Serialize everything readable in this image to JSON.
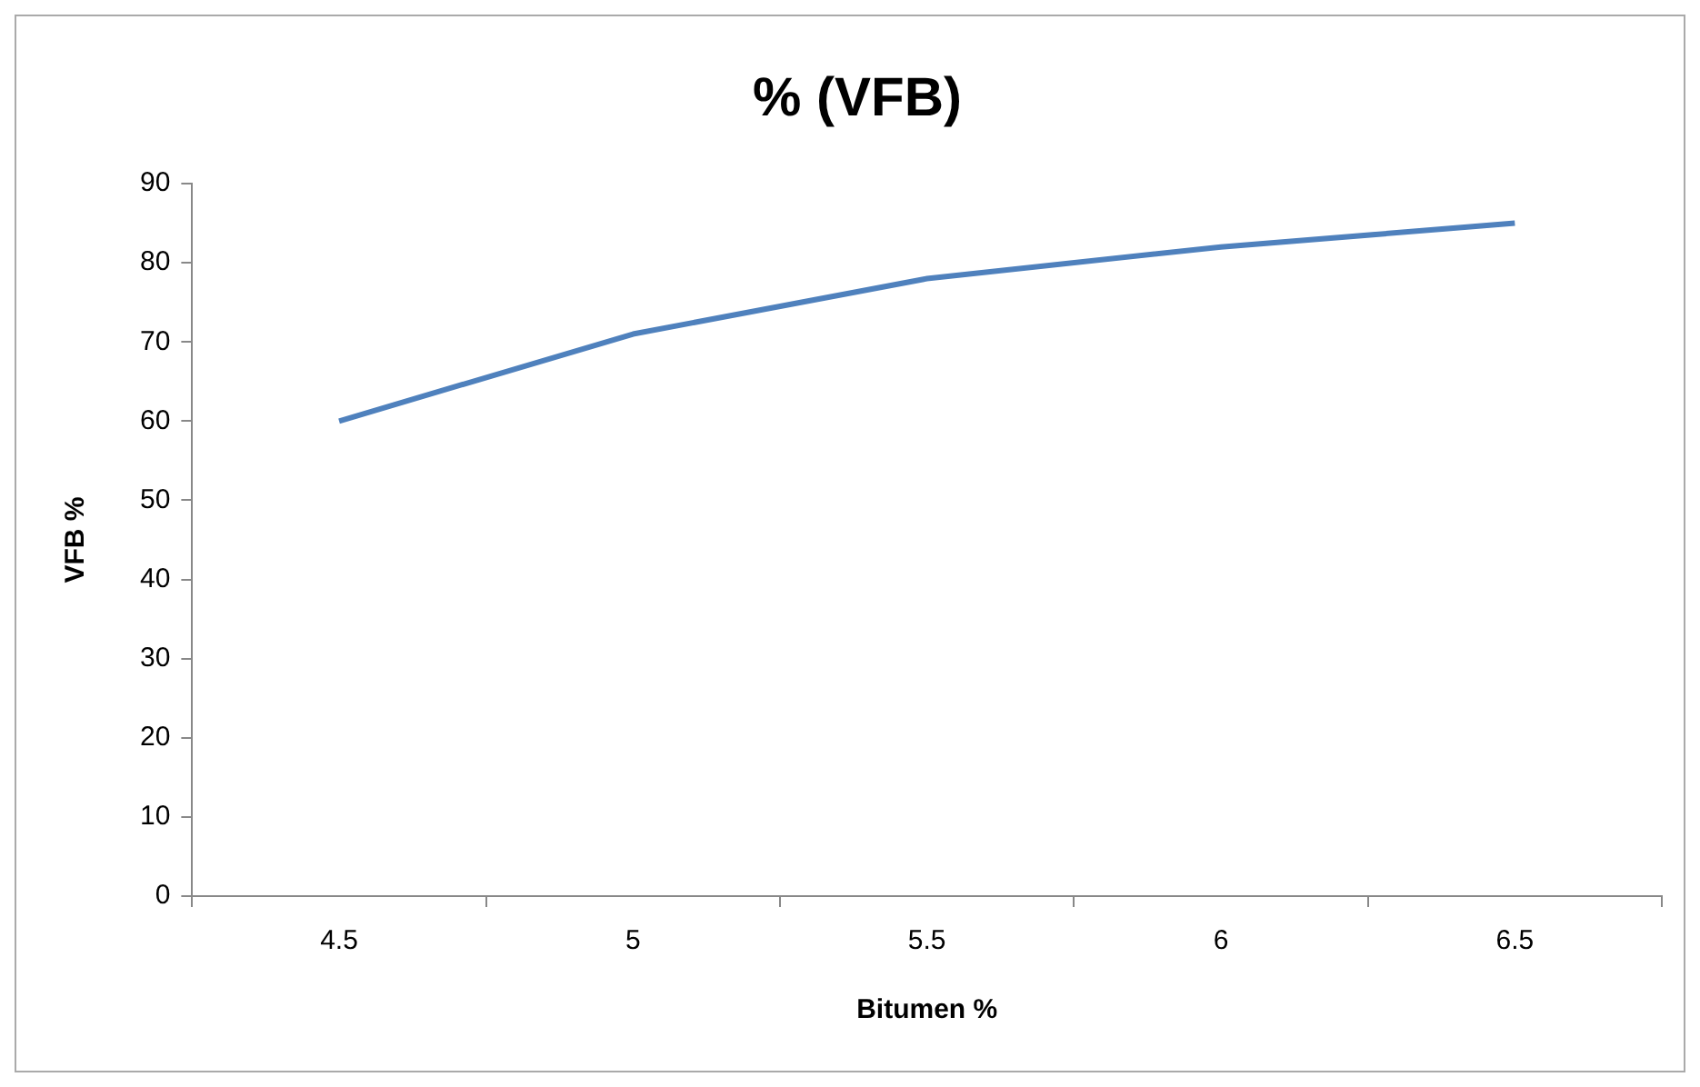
{
  "chart_data": {
    "type": "line",
    "title": "% (VFB)",
    "xlabel": "Bitumen %",
    "ylabel": "VFB %",
    "categories": [
      "4.5",
      "5",
      "5.5",
      "6",
      "6.5"
    ],
    "series": [
      {
        "color": "#4f81bd",
        "values": [
          60,
          71,
          78,
          82,
          85
        ]
      }
    ],
    "ylim": [
      0,
      90
    ],
    "yticks": [
      0,
      10,
      20,
      30,
      40,
      50,
      60,
      70,
      80,
      90
    ],
    "grid": false,
    "legend": false,
    "marker": "none",
    "line_style": "solid"
  }
}
